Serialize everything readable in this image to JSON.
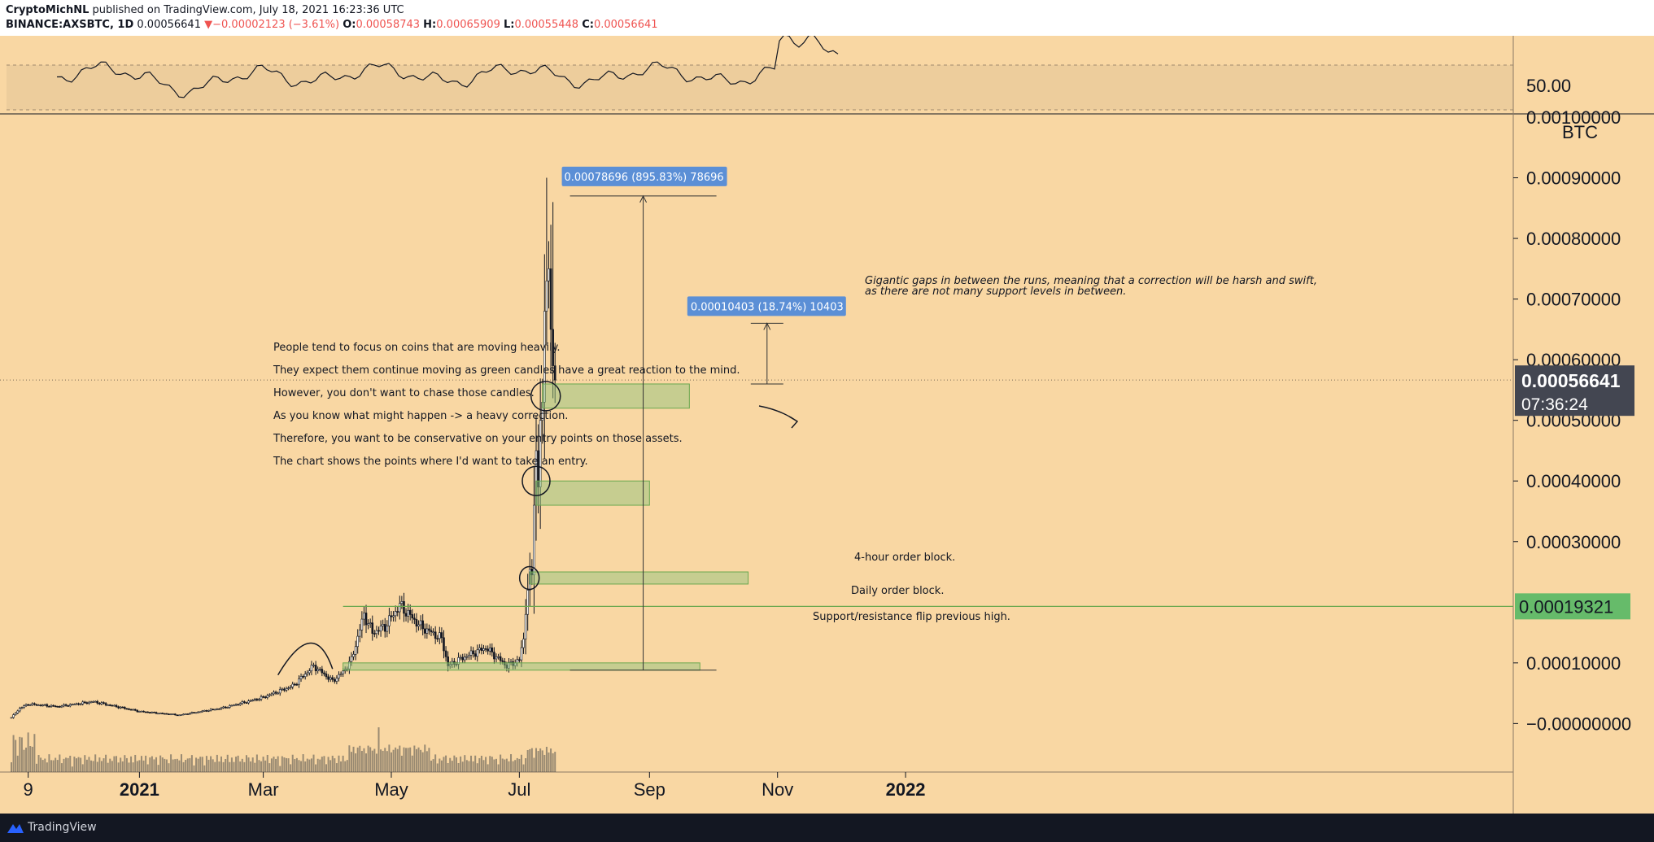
{
  "header": {
    "author": "CryptoMichNL",
    "published": "published on TradingView.com, July 18, 2021 16:23:36 UTC",
    "symbol": "BINANCE:AXSBTC, 1D",
    "last": "0.00056641",
    "change": "−0.00002123 (−3.61%)",
    "o_label": "O:",
    "o": "0.00058743",
    "h_label": "H:",
    "h": "0.00065909",
    "l_label": "L:",
    "l": "0.00055448",
    "c_label": "C:",
    "c": "0.00056641"
  },
  "footer": {
    "brand": "TradingView"
  },
  "colors": {
    "background": "#f9d7a3",
    "candle": "#131722",
    "zone": "#93c47d",
    "measure": "#5b8fd6",
    "price_tag": "#434651",
    "level_tag": "#66bb6a"
  },
  "chart_data": {
    "type": "candlestick",
    "x_start": "2020-11-01",
    "x_axis_labels": [
      "9",
      "2021",
      "Mar",
      "May",
      "Jul",
      "Sep",
      "Nov",
      "2022"
    ],
    "y_axis_labels": [
      "0.00090000",
      "0.00080000",
      "0.00070000",
      "0.00060000",
      "0.00050000",
      "0.00040000",
      "0.00030000",
      "0.00010000",
      "−0.00000000"
    ],
    "y_clipped_label": "0.00100000",
    "y_unit": "BTC",
    "ylim": [
      -8e-05,
      0.001
    ],
    "closes": [
      {
        "date": "2020-11-01",
        "value": 1e-05
      },
      {
        "date": "2020-11-05",
        "value": 2.5e-05
      },
      {
        "date": "2020-11-09",
        "value": 3.2e-05
      },
      {
        "date": "2020-11-23",
        "value": 2.8e-05
      },
      {
        "date": "2020-12-10",
        "value": 3.6e-05
      },
      {
        "date": "2021-01-01",
        "value": 2e-05
      },
      {
        "date": "2021-01-20",
        "value": 1.4e-05
      },
      {
        "date": "2021-02-10",
        "value": 2.6e-05
      },
      {
        "date": "2021-02-28",
        "value": 4.2e-05
      },
      {
        "date": "2021-03-15",
        "value": 6.2e-05
      },
      {
        "date": "2021-03-25",
        "value": 9.5e-05
      },
      {
        "date": "2021-04-03",
        "value": 7e-05
      },
      {
        "date": "2021-04-08",
        "value": 8.5e-05
      },
      {
        "date": "2021-04-12",
        "value": 0.000105
      },
      {
        "date": "2021-04-18",
        "value": 0.00018
      },
      {
        "date": "2021-04-22",
        "value": 0.00015
      },
      {
        "date": "2021-04-28",
        "value": 0.00016
      },
      {
        "date": "2021-05-05",
        "value": 0.000195
      },
      {
        "date": "2021-05-15",
        "value": 0.00016
      },
      {
        "date": "2021-05-25",
        "value": 0.00014
      },
      {
        "date": "2021-05-28",
        "value": 9.5e-05
      },
      {
        "date": "2021-06-05",
        "value": 0.00011
      },
      {
        "date": "2021-06-15",
        "value": 0.000125
      },
      {
        "date": "2021-06-25",
        "value": 9.5e-05
      },
      {
        "date": "2021-07-01",
        "value": 0.000105
      },
      {
        "date": "2021-07-03",
        "value": 0.00014
      },
      {
        "date": "2021-07-05",
        "value": 0.00022
      },
      {
        "date": "2021-07-06",
        "value": 0.000255
      },
      {
        "date": "2021-07-07",
        "value": 0.000245
      },
      {
        "date": "2021-07-08",
        "value": 0.00036
      },
      {
        "date": "2021-07-09",
        "value": 0.00045
      },
      {
        "date": "2021-07-10",
        "value": 0.00039
      },
      {
        "date": "2021-07-11",
        "value": 0.0005
      },
      {
        "date": "2021-07-12",
        "value": 0.00053
      },
      {
        "date": "2021-07-13",
        "value": 0.00068
      },
      {
        "date": "2021-07-14",
        "value": 0.00073
      },
      {
        "date": "2021-07-15",
        "value": 0.00075
      },
      {
        "date": "2021-07-16",
        "value": 0.00065
      },
      {
        "date": "2021-07-17",
        "value": 0.00059
      },
      {
        "date": "2021-07-18",
        "value": 0.00056641
      }
    ],
    "high_max": 0.0009,
    "current_price": "0.00056641",
    "countdown": "07:36:24",
    "level_price": "0.00019321",
    "rsi_label": "50.00",
    "measures": [
      {
        "label": "0.00078696 (895.83%) 78696"
      },
      {
        "label": "0.00010403 (18.74%) 10403"
      }
    ],
    "zones": [
      {
        "from": "2021-07-12",
        "to": "2021-09-20",
        "top": 0.00056,
        "bottom": 0.00052
      },
      {
        "from": "2021-07-09",
        "to": "2021-09-01",
        "top": 0.0004,
        "bottom": 0.00036
      },
      {
        "from": "2021-07-06",
        "to": "2021-10-18",
        "top": 0.00025,
        "bottom": 0.00023
      },
      {
        "from": "2021-04-08",
        "to": "2021-09-25",
        "top": 0.0001,
        "bottom": 8.8e-05
      }
    ],
    "annotations": {
      "gap_note_1": "Gigantic gaps in between the runs, meaning that a correction will be harsh and swift,",
      "gap_note_2": "as there are not many support levels in between.",
      "four_hour": "4-hour order block.",
      "daily": "Daily order block.",
      "flip": "Support/resistance flip previous high.",
      "notes": [
        "People tend to focus on coins that are moving heavily.",
        "They expect them continue moving as green candles have a great reaction to the mind.",
        "However, you don't want to chase those candles.",
        "As you know what might happen -> a heavy correction.",
        "Therefore, you want to be conservative on your entry points on those assets.",
        "The chart shows the points where I'd want to take an entry."
      ]
    }
  }
}
